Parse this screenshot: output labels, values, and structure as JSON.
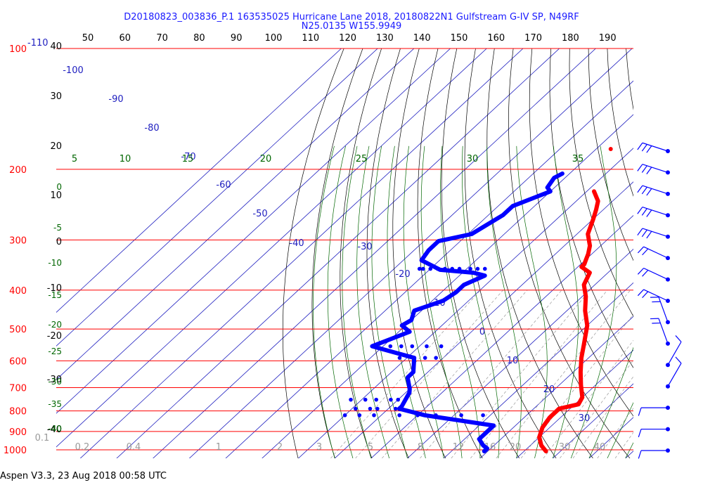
{
  "title_line1": "D20180823_003836_P.1 163535025 Hurricane Lane 2018, 20180822N1 Gulfstream G-IV SP, N49RF",
  "title_line2": "N25.0135 W155.9949",
  "footer": "Aspen V3.3, 23 Aug 2018  00:58 UTC",
  "colors": {
    "pressure": "#ff0000",
    "temperature": "#ff0000",
    "dewpoint": "#0000ff",
    "isotherm": "#2020c0",
    "dry_adiabat": "#000000",
    "moist_adiabat": "#006600",
    "mixing_ratio": "#999999",
    "wind": "#0000ff"
  },
  "chart_data": {
    "type": "skew-t",
    "pressure_labels": [
      "100",
      "200",
      "300",
      "400",
      "500",
      "600",
      "700",
      "800",
      "900",
      "1000"
    ],
    "pressure_levels_hpa": [
      100,
      200,
      300,
      400,
      500,
      600,
      700,
      800,
      900,
      1000
    ],
    "top_ticks_f": [
      "50",
      "60",
      "70",
      "80",
      "90",
      "100",
      "110",
      "120",
      "130",
      "140",
      "150",
      "160",
      "170",
      "180",
      "190"
    ],
    "top_left_labels": {
      "red": "100",
      "blue": "-110"
    },
    "left_temp_labels_c": [
      "40",
      "30",
      "20",
      "10",
      "0",
      "-10",
      "-20",
      "-30",
      "-40"
    ],
    "isotherm_labels_c": [
      "-100",
      "-90",
      "-80",
      "-70",
      "-60",
      "-50",
      "-40",
      "-30",
      "-20",
      "-10",
      "0",
      "10",
      "20",
      "30"
    ],
    "theta_e_labels": [
      "5",
      "10",
      "15",
      "20",
      "25",
      "30",
      "35"
    ],
    "left_moist_labels": [
      "0",
      "-5",
      "-10",
      "-15",
      "-20",
      "-25",
      "-30",
      "-35",
      "-40"
    ],
    "mixing_ratio_labels": [
      "0.1",
      "0.2",
      "0.4",
      "1",
      "2",
      "3",
      "5",
      "8",
      "12",
      "16",
      "20",
      "30",
      "40"
    ],
    "temperature_c": [
      [
        227,
        -48
      ],
      [
        240,
        -44
      ],
      [
        252,
        -42
      ],
      [
        266,
        -40
      ],
      [
        290,
        -37
      ],
      [
        310,
        -33
      ],
      [
        325,
        -31
      ],
      [
        335,
        -30
      ],
      [
        345,
        -29
      ],
      [
        350,
        -29
      ],
      [
        362,
        -25
      ],
      [
        388,
        -23
      ],
      [
        415,
        -19
      ],
      [
        450,
        -15
      ],
      [
        490,
        -10
      ],
      [
        550,
        -5
      ],
      [
        590,
        -2
      ],
      [
        640,
        2
      ],
      [
        690,
        6
      ],
      [
        740,
        10
      ],
      [
        770,
        11
      ],
      [
        790,
        7
      ],
      [
        830,
        7
      ],
      [
        880,
        8
      ],
      [
        930,
        10
      ],
      [
        975,
        13
      ],
      [
        1008,
        16
      ]
    ],
    "temperature_isolated": [
      [
        178,
        -56
      ]
    ],
    "dewpoint_c": [
      [
        205,
        -62
      ],
      [
        210,
        -63
      ],
      [
        222,
        -62
      ],
      [
        227,
        -60
      ],
      [
        247,
        -66
      ],
      [
        260,
        -66
      ],
      [
        290,
        -69
      ],
      [
        302,
        -76
      ],
      [
        318,
        -76
      ],
      [
        337,
        -75
      ],
      [
        356,
        -67
      ],
      [
        362,
        -57
      ],
      [
        368,
        -53
      ],
      [
        388,
        -56
      ],
      [
        405,
        -56
      ],
      [
        425,
        -57
      ],
      [
        450,
        -62
      ],
      [
        475,
        -60
      ],
      [
        490,
        -61
      ],
      [
        508,
        -57
      ],
      [
        552,
        -63
      ],
      [
        572,
        -55
      ],
      [
        590,
        -48
      ],
      [
        640,
        -44
      ],
      [
        660,
        -44
      ],
      [
        705,
        -40
      ],
      [
        720,
        -39
      ],
      [
        780,
        -37
      ],
      [
        790,
        -37
      ],
      [
        820,
        -28
      ],
      [
        870,
        -6
      ],
      [
        940,
        -6
      ],
      [
        975,
        -3
      ],
      [
        992,
        -1
      ],
      [
        1008,
        -1
      ]
    ],
    "dewpoint_scatter_levels": [
      {
        "p": 354,
        "t": [
          -73,
          -72,
          -70,
          -68,
          -66,
          -64,
          -62,
          -59,
          -57,
          -55
        ]
      },
      {
        "p": 552,
        "t": [
          -58,
          -55,
          -52,
          -48,
          -44
        ]
      },
      {
        "p": 590,
        "t": [
          -52,
          -48,
          -45,
          -42
        ]
      },
      {
        "p": 750,
        "t": [
          -53,
          -49,
          -46,
          -42,
          -40
        ]
      },
      {
        "p": 790,
        "t": [
          -49,
          -45,
          -43,
          -38
        ]
      },
      {
        "p": 820,
        "t": [
          -50,
          -46,
          -42,
          -35,
          -30,
          -25,
          -18,
          -12
        ]
      }
    ],
    "wind_barbs_levels": 15
  }
}
